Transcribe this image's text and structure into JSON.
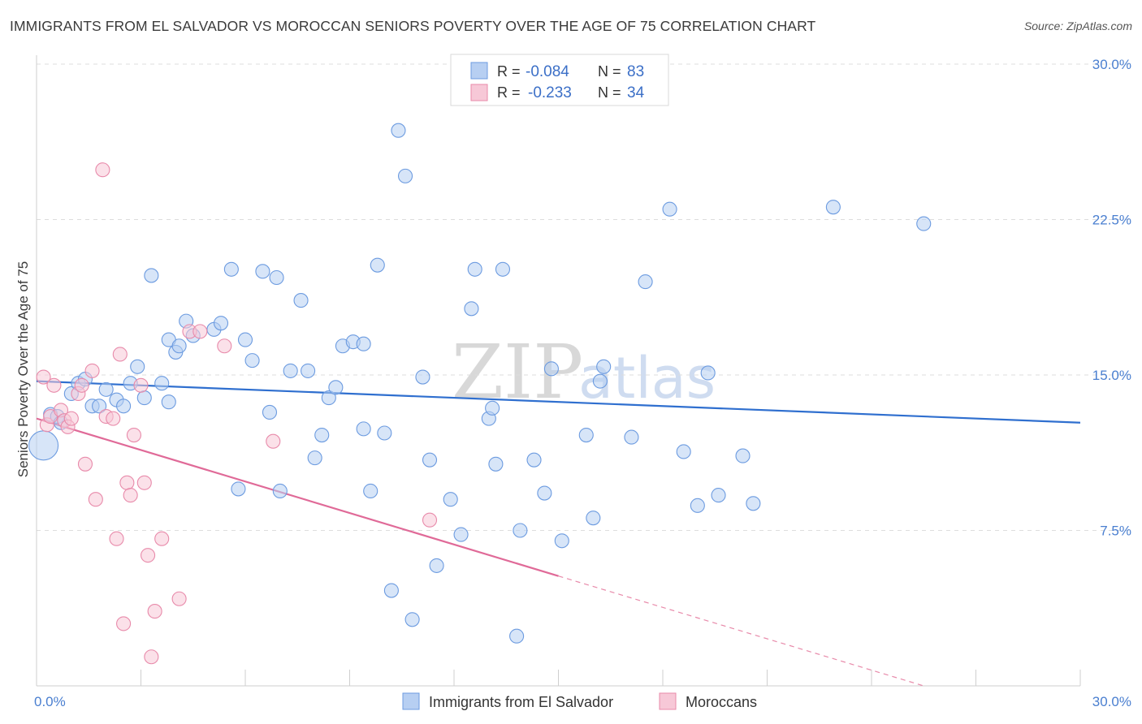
{
  "header": {
    "title": "IMMIGRANTS FROM EL SALVADOR VS MOROCCAN SENIORS POVERTY OVER THE AGE OF 75 CORRELATION CHART",
    "source": "Source: ZipAtlas.com"
  },
  "watermark": {
    "zip": "ZIP",
    "atlas": "atlas"
  },
  "chart_data": {
    "type": "scatter",
    "title": "IMMIGRANTS FROM EL SALVADOR VS MOROCCAN SENIORS POVERTY OVER THE AGE OF 75 CORRELATION CHART",
    "xlabel": "",
    "ylabel": "Seniors Poverty Over the Age of 75",
    "xlim": [
      0,
      30
    ],
    "ylim": [
      0,
      30
    ],
    "x_tick_labels": [
      "0.0%",
      "30.0%"
    ],
    "y_ticks": [
      7.5,
      15.0,
      22.5,
      30.0
    ],
    "y_tick_labels": [
      "7.5%",
      "15.0%",
      "22.5%",
      "30.0%"
    ],
    "legend_position": "top-center",
    "legend": [
      {
        "r_label": "R =",
        "r_value": "-0.084",
        "n_label": "N =",
        "n_value": "83"
      },
      {
        "r_label": "R =",
        "r_value": "-0.233",
        "n_label": "N =",
        "n_value": "34"
      }
    ],
    "series": [
      {
        "name": "Immigrants from El Salvador",
        "color": "#6c9be0",
        "fill": "#b7cff2",
        "trend": {
          "x0": 0,
          "y0": 14.7,
          "x1": 30,
          "y1": 12.7
        },
        "points": [
          [
            0.2,
            11.6
          ],
          [
            0.4,
            13.1
          ],
          [
            0.6,
            13.0
          ],
          [
            0.7,
            12.7
          ],
          [
            1.0,
            14.1
          ],
          [
            1.2,
            14.6
          ],
          [
            1.4,
            14.8
          ],
          [
            1.6,
            13.5
          ],
          [
            1.8,
            13.5
          ],
          [
            2.0,
            14.3
          ],
          [
            2.3,
            13.8
          ],
          [
            2.5,
            13.5
          ],
          [
            2.7,
            14.6
          ],
          [
            2.9,
            15.4
          ],
          [
            3.1,
            13.9
          ],
          [
            3.3,
            19.8
          ],
          [
            3.6,
            14.6
          ],
          [
            3.8,
            13.7
          ],
          [
            3.8,
            16.7
          ],
          [
            4.0,
            16.1
          ],
          [
            4.1,
            16.4
          ],
          [
            4.3,
            17.6
          ],
          [
            4.5,
            16.9
          ],
          [
            5.1,
            17.2
          ],
          [
            5.3,
            17.5
          ],
          [
            5.6,
            20.1
          ],
          [
            5.8,
            9.5
          ],
          [
            6.0,
            16.7
          ],
          [
            6.2,
            15.7
          ],
          [
            6.5,
            20.0
          ],
          [
            6.7,
            13.2
          ],
          [
            6.9,
            19.7
          ],
          [
            7.0,
            9.4
          ],
          [
            7.3,
            15.2
          ],
          [
            7.6,
            18.6
          ],
          [
            7.8,
            15.2
          ],
          [
            8.0,
            11.0
          ],
          [
            8.2,
            12.1
          ],
          [
            8.4,
            13.9
          ],
          [
            8.6,
            14.4
          ],
          [
            8.8,
            16.4
          ],
          [
            9.1,
            16.6
          ],
          [
            9.4,
            12.4
          ],
          [
            9.4,
            16.5
          ],
          [
            9.6,
            9.4
          ],
          [
            9.8,
            20.3
          ],
          [
            10.0,
            12.2
          ],
          [
            10.2,
            4.6
          ],
          [
            10.4,
            26.8
          ],
          [
            10.6,
            24.6
          ],
          [
            10.8,
            3.2
          ],
          [
            11.1,
            14.9
          ],
          [
            11.3,
            10.9
          ],
          [
            11.5,
            5.8
          ],
          [
            11.9,
            9.0
          ],
          [
            12.2,
            7.3
          ],
          [
            12.5,
            18.2
          ],
          [
            12.6,
            20.1
          ],
          [
            13.0,
            12.9
          ],
          [
            13.1,
            13.4
          ],
          [
            13.2,
            10.7
          ],
          [
            13.4,
            20.1
          ],
          [
            13.8,
            2.4
          ],
          [
            13.9,
            7.5
          ],
          [
            14.3,
            10.9
          ],
          [
            14.6,
            9.3
          ],
          [
            14.8,
            15.3
          ],
          [
            15.1,
            7.0
          ],
          [
            15.8,
            12.1
          ],
          [
            16.0,
            8.1
          ],
          [
            16.2,
            14.7
          ],
          [
            16.3,
            15.4
          ],
          [
            17.1,
            12.0
          ],
          [
            17.5,
            19.5
          ],
          [
            18.2,
            23.0
          ],
          [
            18.6,
            11.3
          ],
          [
            19.0,
            8.7
          ],
          [
            19.3,
            15.1
          ],
          [
            19.6,
            9.2
          ],
          [
            20.3,
            11.1
          ],
          [
            20.6,
            8.8
          ],
          [
            22.9,
            23.1
          ],
          [
            25.5,
            22.3
          ]
        ]
      },
      {
        "name": "Moroccans",
        "color": "#e88aaa",
        "fill": "#f7c8d7",
        "trend": {
          "x0": 0,
          "y0": 12.9,
          "x1": 15,
          "y1": 5.3
        },
        "trend_dashed": {
          "x0": 15,
          "y0": 5.3,
          "x1": 25.5,
          "y1": 0.0
        },
        "points": [
          [
            0.2,
            14.9
          ],
          [
            0.3,
            12.6
          ],
          [
            0.4,
            13.0
          ],
          [
            0.5,
            14.5
          ],
          [
            0.7,
            13.3
          ],
          [
            0.8,
            12.8
          ],
          [
            0.9,
            12.5
          ],
          [
            1.0,
            12.9
          ],
          [
            1.2,
            14.1
          ],
          [
            1.3,
            14.5
          ],
          [
            1.4,
            10.7
          ],
          [
            1.6,
            15.2
          ],
          [
            1.7,
            9.0
          ],
          [
            1.9,
            24.9
          ],
          [
            2.0,
            13.0
          ],
          [
            2.2,
            12.9
          ],
          [
            2.3,
            7.1
          ],
          [
            2.4,
            16.0
          ],
          [
            2.5,
            3.0
          ],
          [
            2.6,
            9.8
          ],
          [
            2.7,
            9.2
          ],
          [
            2.8,
            12.1
          ],
          [
            3.0,
            14.5
          ],
          [
            3.1,
            9.8
          ],
          [
            3.2,
            6.3
          ],
          [
            3.3,
            1.4
          ],
          [
            3.4,
            3.6
          ],
          [
            3.6,
            7.1
          ],
          [
            4.1,
            4.2
          ],
          [
            4.4,
            17.1
          ],
          [
            4.7,
            17.1
          ],
          [
            5.4,
            16.4
          ],
          [
            6.8,
            11.8
          ],
          [
            11.3,
            8.0
          ]
        ]
      }
    ]
  },
  "bottom_legend": {
    "items": [
      "Immigrants from El Salvador",
      "Moroccans"
    ]
  }
}
